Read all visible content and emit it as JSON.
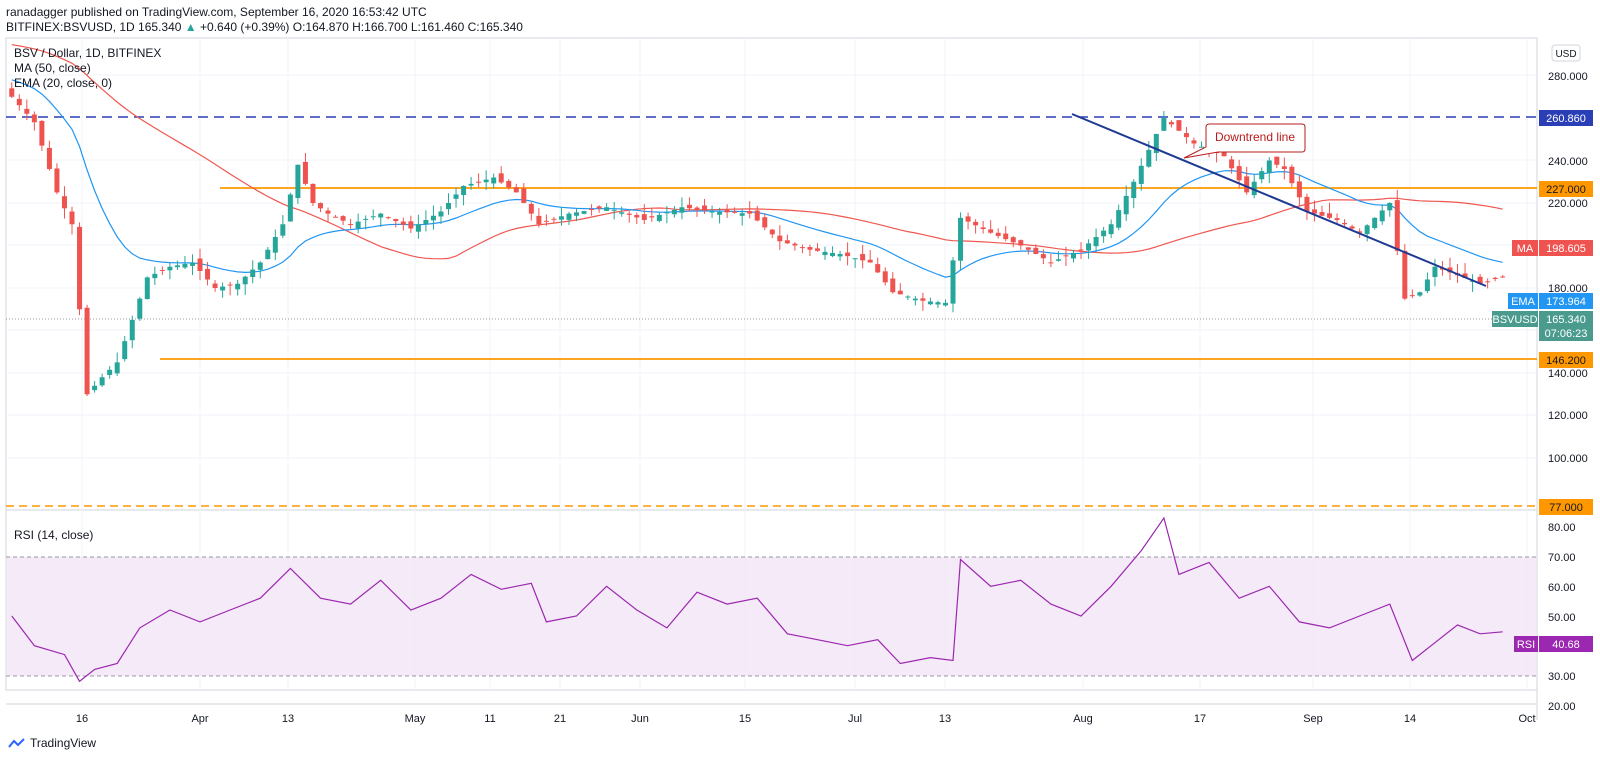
{
  "header": {
    "publisher_line": "ranadagger published on TradingView.com, September 16, 2020 16:53:42 UTC",
    "symbol": "BITFINEX:BSVUSD, 1D",
    "price": "165.340",
    "change_arrow": "▲",
    "change": "+0.640 (+0.39%)",
    "ohlc": "O:164.870 H:166.700 L:161.460 C:165.340"
  },
  "legend": {
    "title": "BSV / Dollar, 1D, BITFINEX",
    "ma": "MA (50, close)",
    "ema": "EMA (20, close, 0)",
    "rsi": "RSI (14, close)"
  },
  "axis": {
    "currency": "USD",
    "price_ticks": [
      "280.000",
      "260.000",
      "240.000",
      "220.000",
      "200.000",
      "180.000",
      "160.000",
      "140.000",
      "120.000",
      "100.000",
      "80.000"
    ],
    "rsi_ticks": [
      "80.00",
      "70.00",
      "60.00",
      "50.00",
      "40.00",
      "30.00",
      "20.00"
    ],
    "date_ticks": [
      "16",
      "Apr",
      "13",
      "May",
      "11",
      "21",
      "Jun",
      "15",
      "Jul",
      "13",
      "Aug",
      "17",
      "Sep",
      "14",
      "Oct"
    ]
  },
  "labels": {
    "resistance_top": "260.860",
    "resistance": "227.000",
    "ma_name": "MA",
    "ma_value": "198.605",
    "ema_name": "EMA",
    "ema_value": "173.964",
    "symbol_name": "BSVUSD",
    "symbol_value": "165.340",
    "countdown": "07:06:23",
    "support": "146.200",
    "support_low": "77.000",
    "rsi_name": "RSI",
    "rsi_value": "40.68",
    "annotation": "Downtrend line"
  },
  "branding": {
    "logo_text": "TradingView"
  },
  "colors": {
    "up": "#26a69a",
    "down": "#ef5350",
    "ma": "#f05750",
    "ema": "#2196f3",
    "rsi": "#9c27b0",
    "level": "#ff9800",
    "dashed_top": "#2a3fb5",
    "trendline": "#1f3a93"
  },
  "chart_data": {
    "type": "candlestick",
    "title": "BSV / Dollar, 1D, BITFINEX",
    "y_range": [
      77,
      280
    ],
    "levels": {
      "260.86": "dashed",
      "227.00": "solid",
      "146.20": "solid",
      "77.00": "dashed"
    },
    "close_path": [
      [
        "Mar 2",
        250
      ],
      [
        "Mar 5",
        238
      ],
      [
        "Mar 8",
        205
      ],
      [
        "Mar 10",
        190
      ],
      [
        "Mar 12",
        110
      ],
      [
        "Mar 14",
        118
      ],
      [
        "Mar 16",
        125
      ],
      [
        "Mar 18",
        145
      ],
      [
        "Mar 20",
        165
      ],
      [
        "Mar 23",
        170
      ],
      [
        "Mar 26",
        172
      ],
      [
        "Mar 29",
        160
      ],
      [
        "Apr 1",
        162
      ],
      [
        "Apr 4",
        172
      ],
      [
        "Apr 7",
        190
      ],
      [
        "Apr 9",
        218
      ],
      [
        "Apr 11",
        200
      ],
      [
        "Apr 13",
        195
      ],
      [
        "Apr 16",
        190
      ],
      [
        "Apr 20",
        195
      ],
      [
        "Apr 24",
        188
      ],
      [
        "Apr 28",
        196
      ],
      [
        "May 1",
        208
      ],
      [
        "May 5",
        212
      ],
      [
        "May 8",
        205
      ],
      [
        "May 11",
        190
      ],
      [
        "May 15",
        195
      ],
      [
        "May 20",
        198
      ],
      [
        "May 25",
        192
      ],
      [
        "May 30",
        198
      ],
      [
        "Jun 3",
        196
      ],
      [
        "Jun 8",
        195
      ],
      [
        "Jun 12",
        182
      ],
      [
        "Jun 16",
        178
      ],
      [
        "Jun 20",
        176
      ],
      [
        "Jun 24",
        172
      ],
      [
        "Jun 27",
        158
      ],
      [
        "Jul 1",
        154
      ],
      [
        "Jul 4",
        153
      ],
      [
        "Jul 6",
        193
      ],
      [
        "Jul 10",
        186
      ],
      [
        "Jul 14",
        180
      ],
      [
        "Jul 18",
        172
      ],
      [
        "Jul 22",
        178
      ],
      [
        "Jul 26",
        190
      ],
      [
        "Jul 29",
        210
      ],
      [
        "Aug 2",
        240
      ],
      [
        "Aug 6",
        228
      ],
      [
        "Aug 10",
        222
      ],
      [
        "Aug 13",
        205
      ],
      [
        "Aug 16",
        220
      ],
      [
        "Aug 18",
        216
      ],
      [
        "Aug 21",
        196
      ],
      [
        "Aug 25",
        192
      ],
      [
        "Aug 28",
        186
      ],
      [
        "Sep 1",
        200
      ],
      [
        "Sep 3",
        155
      ],
      [
        "Sep 5",
        158
      ],
      [
        "Sep 7",
        170
      ],
      [
        "Sep 10",
        166
      ],
      [
        "Sep 13",
        162
      ],
      [
        "Sep 16",
        165.34
      ]
    ],
    "ma50_last": 198.605,
    "ema20_last": 173.964,
    "rsi": {
      "range": [
        20,
        80
      ],
      "overbought": 70,
      "oversold": 30,
      "path": [
        [
          "Mar 2",
          46
        ],
        [
          "Mar 5",
          36
        ],
        [
          "Mar 9",
          33
        ],
        [
          "Mar 11",
          24
        ],
        [
          "Mar 13",
          28
        ],
        [
          "Mar 16",
          30
        ],
        [
          "Mar 19",
          42
        ],
        [
          "Mar 23",
          48
        ],
        [
          "Mar 27",
          44
        ],
        [
          "Mar 31",
          48
        ],
        [
          "Apr 4",
          52
        ],
        [
          "Apr 8",
          62
        ],
        [
          "Apr 12",
          52
        ],
        [
          "Apr 16",
          50
        ],
        [
          "Apr 20",
          58
        ],
        [
          "Apr 24",
          48
        ],
        [
          "Apr 28",
          52
        ],
        [
          "May 2",
          60
        ],
        [
          "May 6",
          55
        ],
        [
          "May 10",
          57
        ],
        [
          "May 12",
          44
        ],
        [
          "May 16",
          46
        ],
        [
          "May 20",
          56
        ],
        [
          "May 24",
          48
        ],
        [
          "May 28",
          42
        ],
        [
          "Jun 1",
          54
        ],
        [
          "Jun 5",
          50
        ],
        [
          "Jun 9",
          52
        ],
        [
          "Jun 13",
          40
        ],
        [
          "Jun 17",
          38
        ],
        [
          "Jun 21",
          36
        ],
        [
          "Jun 25",
          38
        ],
        [
          "Jun 28",
          30
        ],
        [
          "Jul 2",
          32
        ],
        [
          "Jul 5",
          31
        ],
        [
          "Jul 6",
          65
        ],
        [
          "Jul 10",
          56
        ],
        [
          "Jul 14",
          58
        ],
        [
          "Jul 18",
          50
        ],
        [
          "Jul 22",
          46
        ],
        [
          "Jul 26",
          56
        ],
        [
          "Jul 30",
          68
        ],
        [
          "Aug 2",
          79
        ],
        [
          "Aug 4",
          60
        ],
        [
          "Aug 8",
          64
        ],
        [
          "Aug 12",
          52
        ],
        [
          "Aug 16",
          56
        ],
        [
          "Aug 20",
          44
        ],
        [
          "Aug 24",
          42
        ],
        [
          "Aug 28",
          46
        ],
        [
          "Sep 1",
          50
        ],
        [
          "Sep 4",
          31
        ],
        [
          "Sep 7",
          37
        ],
        [
          "Sep 10",
          43
        ],
        [
          "Sep 13",
          40
        ],
        [
          "Sep 16",
          40.68
        ]
      ]
    }
  }
}
